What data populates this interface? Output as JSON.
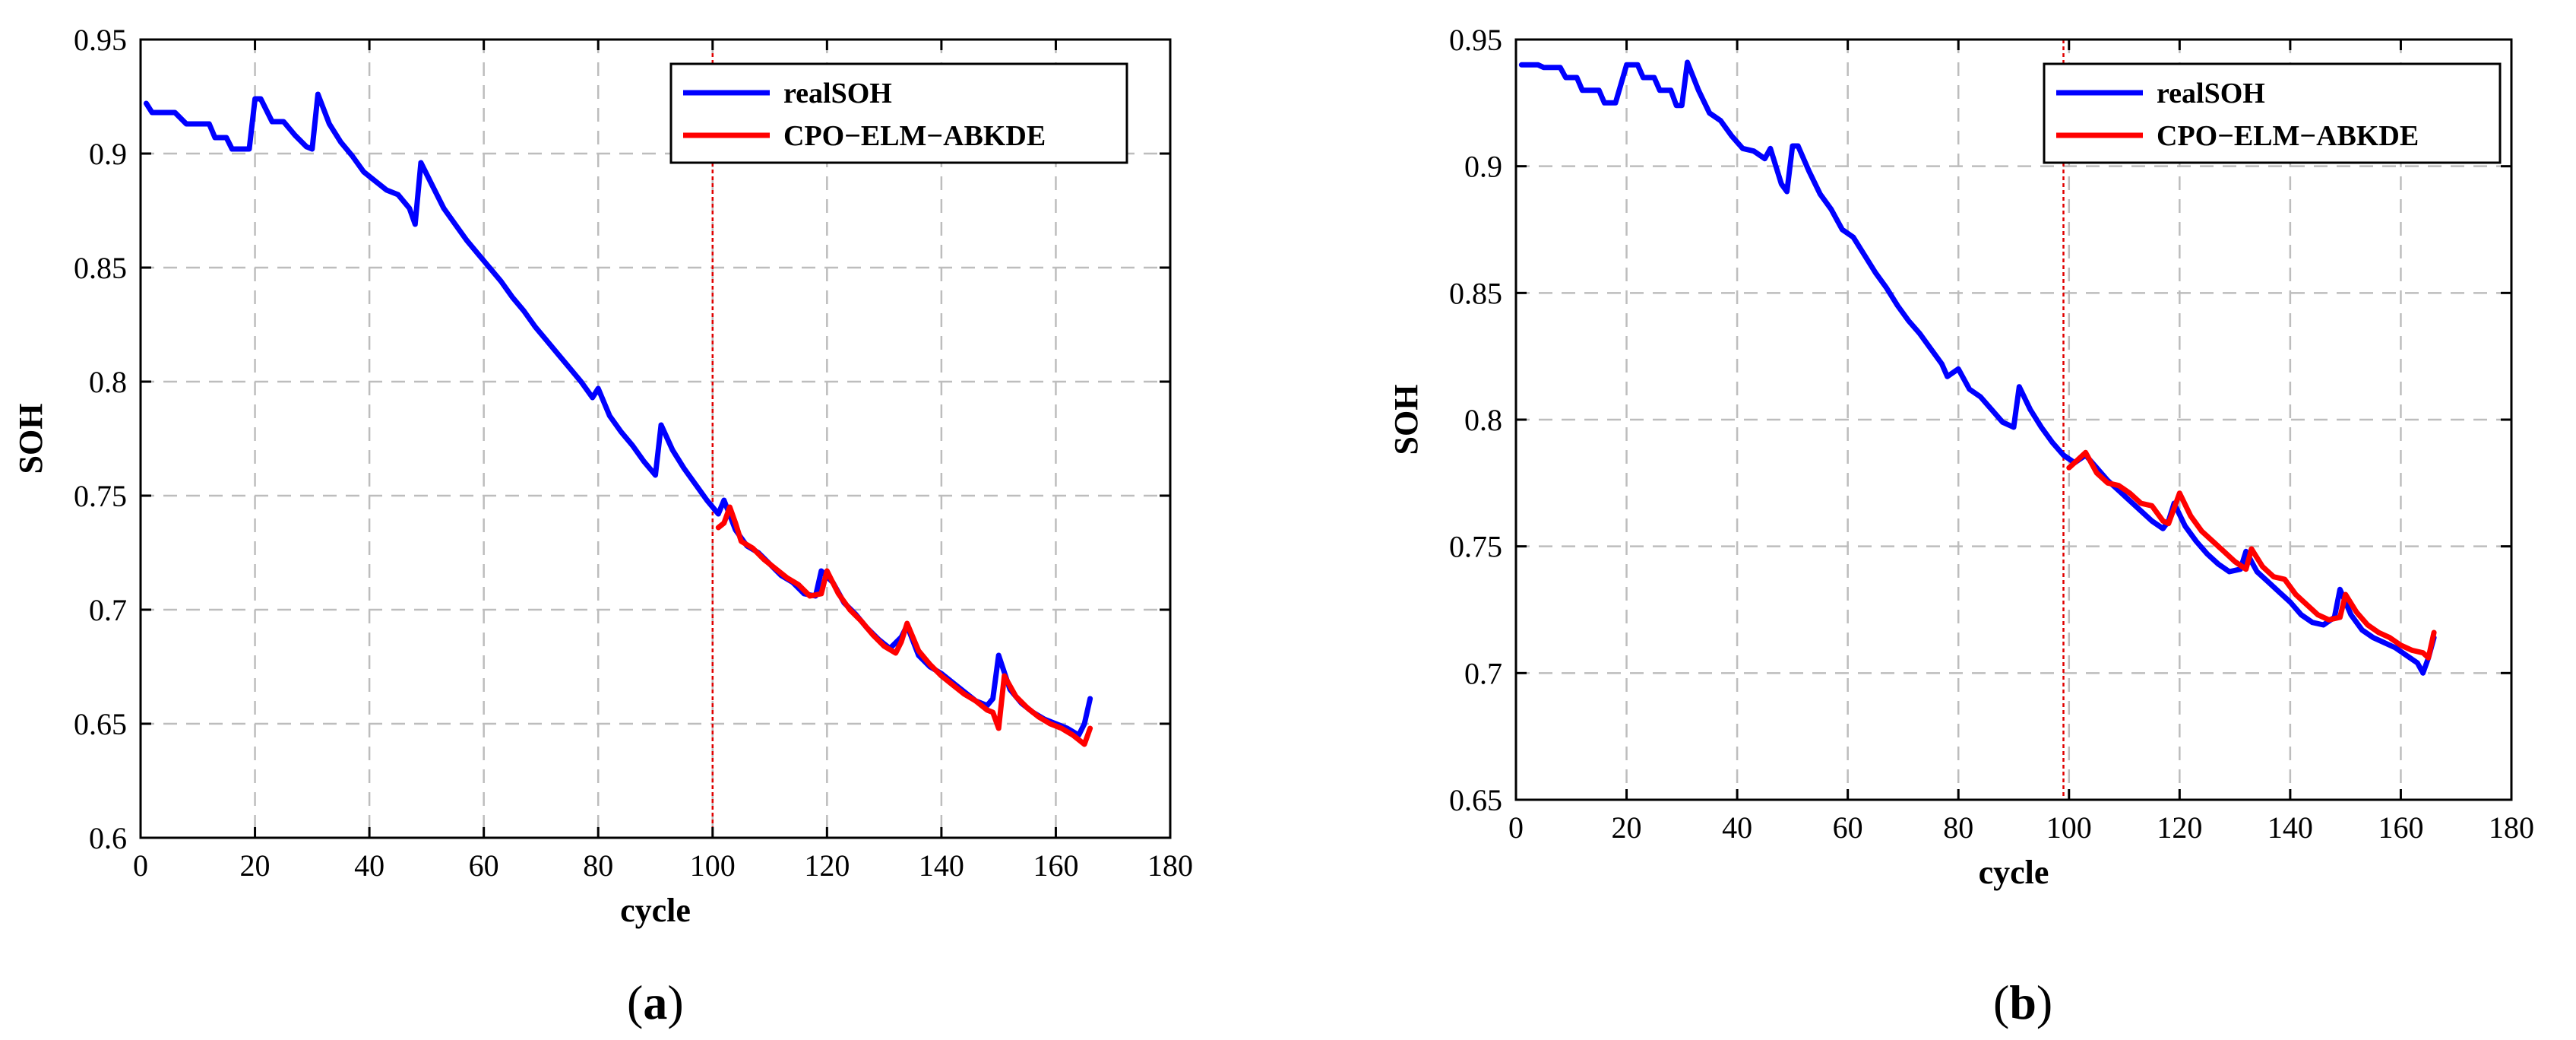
{
  "chart_data": [
    {
      "type": "line",
      "caption": "a",
      "xlabel": "cycle",
      "ylabel": "SOH",
      "xlim": [
        0,
        180
      ],
      "ylim": [
        0.6,
        0.95
      ],
      "xticks": [
        "0",
        "20",
        "40",
        "60",
        "80",
        "100",
        "120",
        "140",
        "160",
        "180"
      ],
      "yticks": [
        "0.6",
        "0.65",
        "0.7",
        "0.75",
        "0.8",
        "0.85",
        "0.9",
        "0.95"
      ],
      "grid": true,
      "legend_position": "top-right",
      "marker_line_x": 100,
      "series": [
        {
          "name": "realSOH",
          "color": "#0000ff",
          "points": [
            [
              1,
              0.922
            ],
            [
              2,
              0.918
            ],
            [
              4,
              0.918
            ],
            [
              6,
              0.918
            ],
            [
              8,
              0.913
            ],
            [
              12,
              0.913
            ],
            [
              13,
              0.907
            ],
            [
              15,
              0.907
            ],
            [
              16,
              0.902
            ],
            [
              19,
              0.902
            ],
            [
              20,
              0.924
            ],
            [
              21,
              0.924
            ],
            [
              23,
              0.914
            ],
            [
              25,
              0.914
            ],
            [
              27,
              0.908
            ],
            [
              29,
              0.903
            ],
            [
              30,
              0.902
            ],
            [
              31,
              0.926
            ],
            [
              33,
              0.913
            ],
            [
              35,
              0.905
            ],
            [
              37,
              0.899
            ],
            [
              39,
              0.892
            ],
            [
              41,
              0.888
            ],
            [
              43,
              0.884
            ],
            [
              45,
              0.882
            ],
            [
              47,
              0.876
            ],
            [
              48,
              0.869
            ],
            [
              49,
              0.896
            ],
            [
              51,
              0.886
            ],
            [
              53,
              0.876
            ],
            [
              55,
              0.869
            ],
            [
              57,
              0.862
            ],
            [
              59,
              0.856
            ],
            [
              61,
              0.85
            ],
            [
              63,
              0.844
            ],
            [
              65,
              0.837
            ],
            [
              67,
              0.831
            ],
            [
              69,
              0.824
            ],
            [
              71,
              0.818
            ],
            [
              73,
              0.812
            ],
            [
              75,
              0.806
            ],
            [
              77,
              0.8
            ],
            [
              79,
              0.793
            ],
            [
              80,
              0.797
            ],
            [
              82,
              0.785
            ],
            [
              84,
              0.778
            ],
            [
              86,
              0.772
            ],
            [
              88,
              0.765
            ],
            [
              90,
              0.759
            ],
            [
              91,
              0.781
            ],
            [
              93,
              0.77
            ],
            [
              95,
              0.762
            ],
            [
              97,
              0.755
            ],
            [
              99,
              0.748
            ],
            [
              101,
              0.742
            ],
            [
              102,
              0.748
            ],
            [
              104,
              0.735
            ],
            [
              106,
              0.728
            ],
            [
              108,
              0.725
            ],
            [
              110,
              0.72
            ],
            [
              112,
              0.715
            ],
            [
              114,
              0.712
            ],
            [
              116,
              0.707
            ],
            [
              118,
              0.706
            ],
            [
              119,
              0.717
            ],
            [
              121,
              0.712
            ],
            [
              123,
              0.703
            ],
            [
              125,
              0.698
            ],
            [
              127,
              0.692
            ],
            [
              129,
              0.687
            ],
            [
              131,
              0.683
            ],
            [
              133,
              0.688
            ],
            [
              134,
              0.693
            ],
            [
              136,
              0.68
            ],
            [
              138,
              0.675
            ],
            [
              140,
              0.672
            ],
            [
              142,
              0.668
            ],
            [
              144,
              0.664
            ],
            [
              146,
              0.66
            ],
            [
              148,
              0.658
            ],
            [
              149,
              0.661
            ],
            [
              150,
              0.68
            ],
            [
              152,
              0.665
            ],
            [
              154,
              0.659
            ],
            [
              156,
              0.655
            ],
            [
              158,
              0.652
            ],
            [
              160,
              0.65
            ],
            [
              162,
              0.648
            ],
            [
              164,
              0.645
            ],
            [
              165,
              0.65
            ],
            [
              166,
              0.661
            ]
          ]
        },
        {
          "name": "CPO−ELM−ABKDE",
          "color": "#ff0000",
          "points": [
            [
              101,
              0.736
            ],
            [
              102,
              0.738
            ],
            [
              103,
              0.745
            ],
            [
              104,
              0.738
            ],
            [
              105,
              0.73
            ],
            [
              107,
              0.727
            ],
            [
              109,
              0.722
            ],
            [
              111,
              0.718
            ],
            [
              113,
              0.714
            ],
            [
              115,
              0.711
            ],
            [
              117,
              0.706
            ],
            [
              119,
              0.707
            ],
            [
              120,
              0.717
            ],
            [
              122,
              0.707
            ],
            [
              124,
              0.7
            ],
            [
              126,
              0.695
            ],
            [
              128,
              0.689
            ],
            [
              130,
              0.684
            ],
            [
              132,
              0.681
            ],
            [
              133,
              0.686
            ],
            [
              134,
              0.694
            ],
            [
              136,
              0.682
            ],
            [
              138,
              0.676
            ],
            [
              140,
              0.671
            ],
            [
              142,
              0.667
            ],
            [
              144,
              0.663
            ],
            [
              146,
              0.66
            ],
            [
              148,
              0.656
            ],
            [
              149,
              0.655
            ],
            [
              150,
              0.648
            ],
            [
              151,
              0.671
            ],
            [
              153,
              0.662
            ],
            [
              155,
              0.657
            ],
            [
              157,
              0.653
            ],
            [
              159,
              0.65
            ],
            [
              161,
              0.648
            ],
            [
              163,
              0.645
            ],
            [
              165,
              0.641
            ],
            [
              166,
              0.648
            ]
          ]
        }
      ]
    },
    {
      "type": "line",
      "caption": "b",
      "xlabel": "cycle",
      "ylabel": "SOH",
      "xlim": [
        0,
        180
      ],
      "ylim": [
        0.65,
        0.95
      ],
      "xticks": [
        "0",
        "20",
        "40",
        "60",
        "80",
        "100",
        "120",
        "140",
        "160",
        "180"
      ],
      "yticks": [
        "0.65",
        "0.7",
        "0.75",
        "0.8",
        "0.85",
        "0.9",
        "0.95"
      ],
      "grid": true,
      "legend_position": "top-right",
      "marker_line_x": 99,
      "series": [
        {
          "name": "realSOH",
          "color": "#0000ff",
          "points": [
            [
              1,
              0.94
            ],
            [
              4,
              0.94
            ],
            [
              5,
              0.939
            ],
            [
              8,
              0.939
            ],
            [
              9,
              0.935
            ],
            [
              11,
              0.935
            ],
            [
              12,
              0.93
            ],
            [
              15,
              0.93
            ],
            [
              16,
              0.925
            ],
            [
              18,
              0.925
            ],
            [
              20,
              0.94
            ],
            [
              22,
              0.94
            ],
            [
              23,
              0.935
            ],
            [
              25,
              0.935
            ],
            [
              26,
              0.93
            ],
            [
              28,
              0.93
            ],
            [
              29,
              0.924
            ],
            [
              30,
              0.924
            ],
            [
              31,
              0.941
            ],
            [
              33,
              0.93
            ],
            [
              35,
              0.921
            ],
            [
              37,
              0.918
            ],
            [
              39,
              0.912
            ],
            [
              41,
              0.907
            ],
            [
              43,
              0.906
            ],
            [
              45,
              0.903
            ],
            [
              46,
              0.907
            ],
            [
              48,
              0.893
            ],
            [
              49,
              0.89
            ],
            [
              50,
              0.908
            ],
            [
              51,
              0.908
            ],
            [
              53,
              0.898
            ],
            [
              55,
              0.889
            ],
            [
              57,
              0.883
            ],
            [
              59,
              0.875
            ],
            [
              61,
              0.872
            ],
            [
              63,
              0.865
            ],
            [
              65,
              0.858
            ],
            [
              67,
              0.852
            ],
            [
              69,
              0.845
            ],
            [
              71,
              0.839
            ],
            [
              73,
              0.834
            ],
            [
              75,
              0.828
            ],
            [
              77,
              0.822
            ],
            [
              78,
              0.817
            ],
            [
              80,
              0.82
            ],
            [
              82,
              0.812
            ],
            [
              84,
              0.809
            ],
            [
              86,
              0.804
            ],
            [
              88,
              0.799
            ],
            [
              90,
              0.797
            ],
            [
              91,
              0.813
            ],
            [
              93,
              0.804
            ],
            [
              95,
              0.797
            ],
            [
              97,
              0.791
            ],
            [
              99,
              0.786
            ],
            [
              101,
              0.783
            ],
            [
              103,
              0.786
            ],
            [
              105,
              0.781
            ],
            [
              107,
              0.776
            ],
            [
              109,
              0.772
            ],
            [
              111,
              0.768
            ],
            [
              113,
              0.764
            ],
            [
              115,
              0.76
            ],
            [
              117,
              0.757
            ],
            [
              118,
              0.76
            ],
            [
              119,
              0.767
            ],
            [
              121,
              0.758
            ],
            [
              123,
              0.752
            ],
            [
              125,
              0.747
            ],
            [
              127,
              0.743
            ],
            [
              129,
              0.74
            ],
            [
              131,
              0.741
            ],
            [
              132,
              0.748
            ],
            [
              134,
              0.74
            ],
            [
              136,
              0.736
            ],
            [
              138,
              0.732
            ],
            [
              140,
              0.728
            ],
            [
              142,
              0.723
            ],
            [
              144,
              0.72
            ],
            [
              146,
              0.719
            ],
            [
              148,
              0.722
            ],
            [
              149,
              0.733
            ],
            [
              151,
              0.723
            ],
            [
              153,
              0.717
            ],
            [
              155,
              0.714
            ],
            [
              157,
              0.712
            ],
            [
              159,
              0.71
            ],
            [
              161,
              0.707
            ],
            [
              163,
              0.704
            ],
            [
              164,
              0.7
            ],
            [
              165,
              0.706
            ],
            [
              166,
              0.714
            ]
          ]
        },
        {
          "name": "CPO−ELM−ABKDE",
          "color": "#ff0000",
          "points": [
            [
              100,
              0.781
            ],
            [
              101,
              0.783
            ],
            [
              103,
              0.787
            ],
            [
              105,
              0.779
            ],
            [
              107,
              0.775
            ],
            [
              109,
              0.774
            ],
            [
              111,
              0.771
            ],
            [
              113,
              0.767
            ],
            [
              115,
              0.766
            ],
            [
              117,
              0.76
            ],
            [
              118,
              0.759
            ],
            [
              120,
              0.771
            ],
            [
              122,
              0.762
            ],
            [
              124,
              0.756
            ],
            [
              126,
              0.752
            ],
            [
              128,
              0.748
            ],
            [
              130,
              0.744
            ],
            [
              132,
              0.741
            ],
            [
              133,
              0.749
            ],
            [
              135,
              0.742
            ],
            [
              137,
              0.738
            ],
            [
              139,
              0.737
            ],
            [
              141,
              0.731
            ],
            [
              143,
              0.727
            ],
            [
              145,
              0.723
            ],
            [
              147,
              0.721
            ],
            [
              149,
              0.722
            ],
            [
              150,
              0.731
            ],
            [
              152,
              0.724
            ],
            [
              154,
              0.719
            ],
            [
              156,
              0.716
            ],
            [
              158,
              0.714
            ],
            [
              160,
              0.711
            ],
            [
              162,
              0.709
            ],
            [
              164,
              0.708
            ],
            [
              165,
              0.706
            ],
            [
              166,
              0.716
            ]
          ]
        }
      ]
    }
  ]
}
